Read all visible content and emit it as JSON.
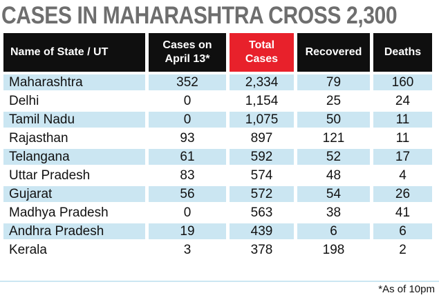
{
  "title": "CASES IN MAHARASHTRA CROSS 2,300",
  "chart_data": {
    "type": "table",
    "title": "CASES IN MAHARASHTRA CROSS 2,300",
    "columns": [
      "Name of State / UT",
      "Cases on April 13*",
      "Total Cases",
      "Recovered",
      "Deaths"
    ],
    "highlight_column": 2,
    "highlight_color": "#e8212b",
    "header_color": "#0f0f0f",
    "row_shade_color": "#cbe6f2",
    "rows": [
      [
        "Maharashtra",
        "352",
        "2,334",
        "79",
        "160"
      ],
      [
        "Delhi",
        "0",
        "1,154",
        "25",
        "24"
      ],
      [
        "Tamil Nadu",
        "0",
        "1,075",
        "50",
        "11"
      ],
      [
        "Rajasthan",
        "93",
        "897",
        "121",
        "11"
      ],
      [
        "Telangana",
        "61",
        "592",
        "52",
        "17"
      ],
      [
        "Uttar Pradesh",
        "83",
        "574",
        "48",
        "4"
      ],
      [
        "Gujarat",
        "56",
        "572",
        "54",
        "26"
      ],
      [
        "Madhya Pradesh",
        "0",
        "563",
        "38",
        "41"
      ],
      [
        "Andhra Pradesh",
        "19",
        "439",
        "6",
        "6"
      ],
      [
        "Kerala",
        "3",
        "378",
        "198",
        "2"
      ]
    ]
  },
  "footnote": "*As of 10pm"
}
